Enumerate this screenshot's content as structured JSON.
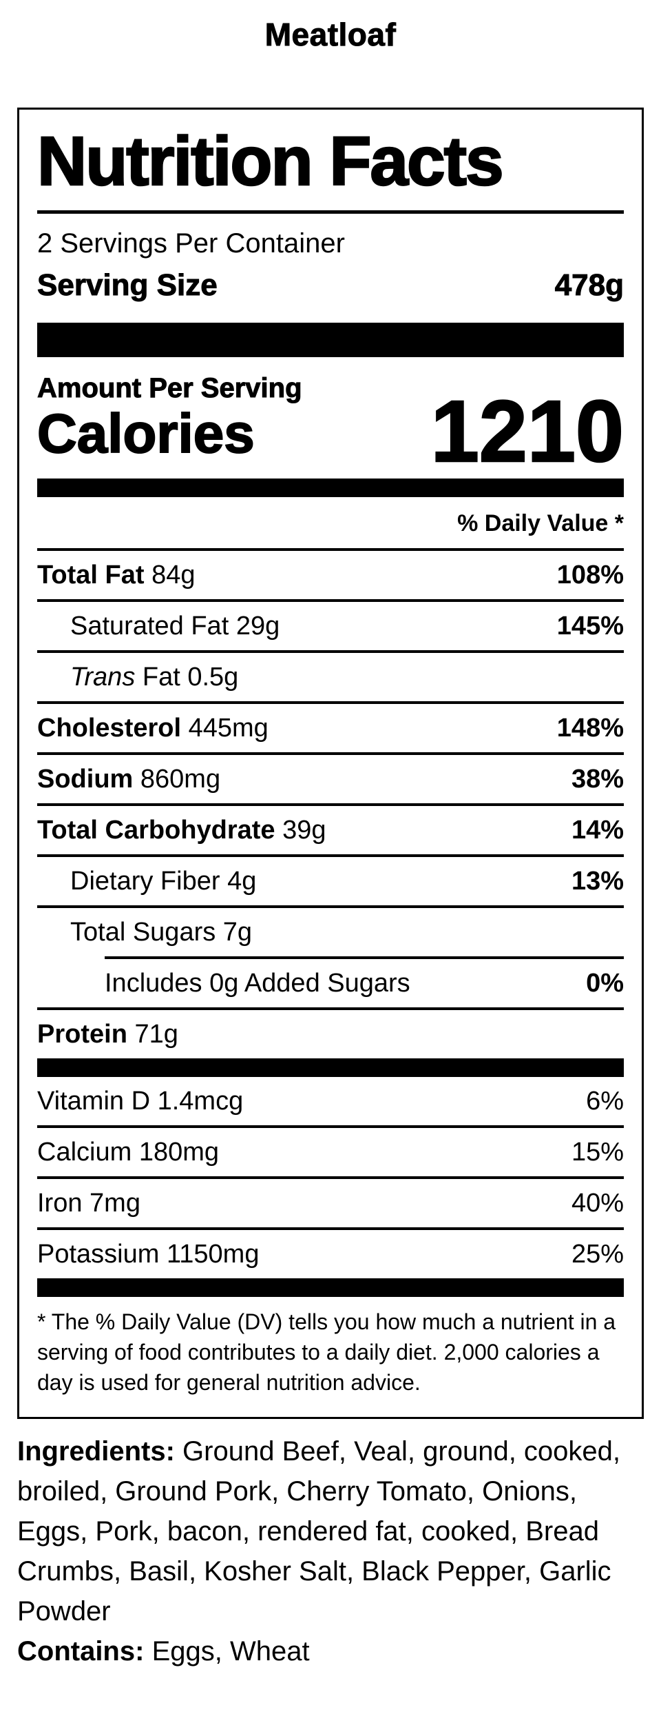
{
  "page": {
    "title": "Meatloaf",
    "text_color": "#000000",
    "background_color": "#ffffff"
  },
  "label": {
    "heading": "Nutrition Facts",
    "servings_per_container": "2 Servings Per Container",
    "serving_size": {
      "label": "Serving Size",
      "value": "478g"
    },
    "amount_per_serving": "Amount Per Serving",
    "calories": {
      "label": "Calories",
      "value": "1210"
    },
    "daily_value_header": "% Daily Value *",
    "nutrients": [
      {
        "name": "Total Fat",
        "amount": "84g",
        "pct": "108%"
      },
      {
        "name": "Saturated Fat",
        "amount": "29g",
        "pct": "145%"
      },
      {
        "name": "Trans",
        "amount": "Fat 0.5g",
        "pct": ""
      },
      {
        "name": "Cholesterol",
        "amount": "445mg",
        "pct": "148%"
      },
      {
        "name": "Sodium",
        "amount": "860mg",
        "pct": "38%"
      },
      {
        "name": "Total Carbohydrate",
        "amount": "39g",
        "pct": "14%"
      },
      {
        "name": "Dietary Fiber",
        "amount": "4g",
        "pct": "13%"
      },
      {
        "name": "Total Sugars",
        "amount": "7g",
        "pct": ""
      },
      {
        "name": "Includes 0g Added Sugars",
        "amount": "",
        "pct": "0%"
      },
      {
        "name": "Protein",
        "amount": "71g",
        "pct": ""
      }
    ],
    "vitamins": [
      {
        "name": "Vitamin D",
        "amount": "1.4mcg",
        "pct": "6%"
      },
      {
        "name": "Calcium",
        "amount": "180mg",
        "pct": "15%"
      },
      {
        "name": "Iron",
        "amount": "7mg",
        "pct": "40%"
      },
      {
        "name": "Potassium",
        "amount": "1150mg",
        "pct": "25%"
      }
    ],
    "footnote": "* The % Daily Value (DV) tells you how much a nutrient in a serving of food contributes to a daily diet. 2,000 calories a day is used for general nutrition advice."
  },
  "ingredients": {
    "label": "Ingredients:",
    "text": "Ground Beef, Veal, ground, cooked, broiled, Ground Pork, Cherry Tomato, Onions, Eggs, Pork, bacon, rendered fat, cooked, Bread Crumbs, Basil, Kosher Salt, Black Pepper, Garlic Powder"
  },
  "contains": {
    "label": "Contains:",
    "text": "Eggs, Wheat"
  }
}
